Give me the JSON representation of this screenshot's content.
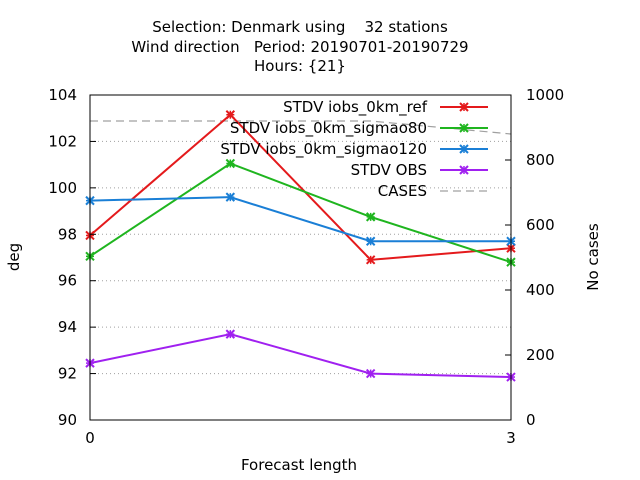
{
  "chart_data": {
    "type": "line",
    "title": [
      "Selection: Denmark using    32 stations",
      "Wind direction   Period: 20190701-20190729",
      "Hours: {21}"
    ],
    "xlabel": "Forecast length",
    "ylabel": "deg",
    "y2label": "No cases",
    "x": [
      0,
      1,
      2,
      3
    ],
    "xlim": [
      0,
      3
    ],
    "xticks": [
      "0",
      "3"
    ],
    "ylim": [
      90,
      104
    ],
    "yticks": [
      "90",
      "92",
      "94",
      "96",
      "98",
      "100",
      "102",
      "104"
    ],
    "y2lim": [
      0,
      1000
    ],
    "y2ticks": [
      "0",
      "200",
      "400",
      "600",
      "800",
      "1000"
    ],
    "grid": "horizontal dotted",
    "legend_position": "top-right",
    "series": [
      {
        "name": "STDV iobs_0km_ref",
        "color": "#e41a1c",
        "axis": "y",
        "marker": "x",
        "values": [
          97.95,
          103.15,
          96.9,
          97.4
        ]
      },
      {
        "name": "STDV iobs_0km_sigmao80",
        "color": "#1fb51f",
        "axis": "y",
        "marker": "x",
        "values": [
          97.05,
          101.05,
          98.75,
          96.8
        ]
      },
      {
        "name": "STDV iobs_0km_sigmao120",
        "color": "#1a7fd6",
        "axis": "y",
        "marker": "x",
        "values": [
          99.45,
          99.6,
          97.7,
          97.7
        ]
      },
      {
        "name": "STDV OBS",
        "color": "#a020f0",
        "axis": "y",
        "marker": "x",
        "values": [
          92.45,
          93.7,
          92.0,
          91.85
        ]
      },
      {
        "name": "CASES",
        "color": "#a0a0a0",
        "axis": "y2",
        "marker": "none",
        "dash": true,
        "values": [
          920,
          920,
          920,
          880
        ]
      }
    ]
  }
}
